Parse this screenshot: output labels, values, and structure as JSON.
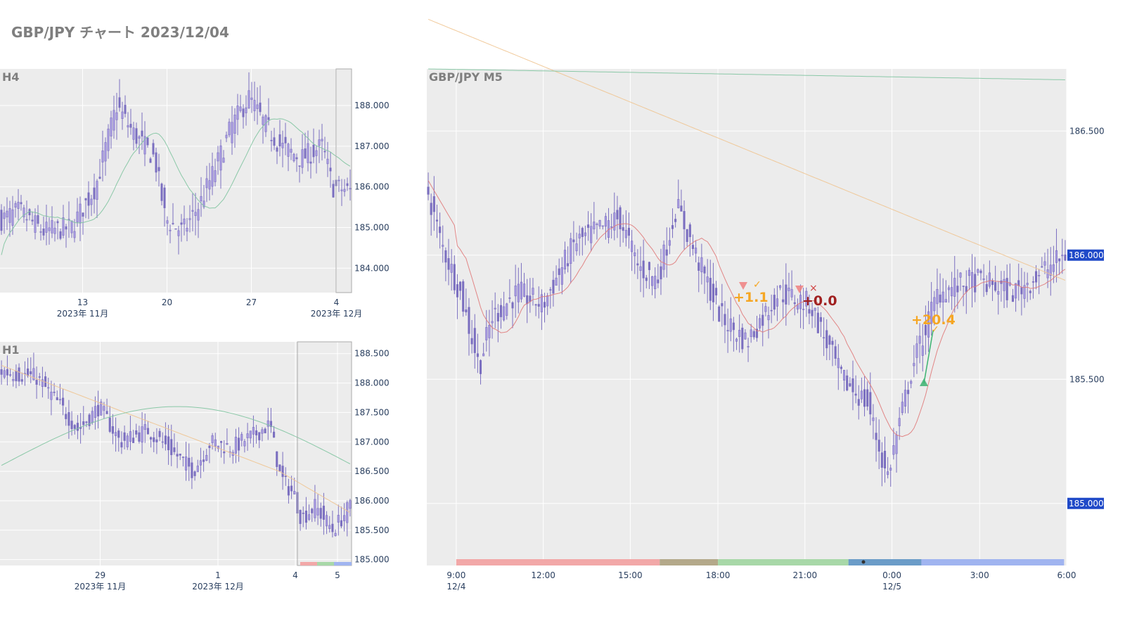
{
  "page": {
    "title": "GBP/JPY チャート 2023/12/04"
  },
  "colors": {
    "plot_bg": "#ececec",
    "grid": "#ffffff",
    "candle": "#7b6fc0",
    "ma_short": "#e07a7a",
    "ma_mid": "#f0c490",
    "ma_long": "#7fc4a0",
    "price_box": "#1f49c8",
    "label_gray": "#7f7f7f",
    "profit": "#f5a623",
    "loss": "#a02020"
  },
  "chart_data": [
    {
      "id": "h4",
      "type": "candlestick",
      "title": "H4",
      "x_ticks": [
        "13",
        "20",
        "27",
        "4"
      ],
      "x_sublabels": [
        "2023年 11月",
        "2023年 12月"
      ],
      "y_ticks": [
        "188.000",
        "187.000",
        "186.000",
        "185.000",
        "184.000"
      ],
      "ylim": [
        183.4,
        188.9
      ],
      "highlight": "current session window",
      "ma_series": [
        "ma_long"
      ]
    },
    {
      "id": "h1",
      "type": "candlestick",
      "title": "H1",
      "x_ticks": [
        "29",
        "1",
        "4",
        "5"
      ],
      "x_sublabels": [
        "2023年 11月",
        "2023年 12月"
      ],
      "y_ticks": [
        "188.500",
        "188.000",
        "187.500",
        "187.000",
        "186.500",
        "186.000",
        "185.500",
        "185.000"
      ],
      "ylim": [
        184.9,
        188.7
      ],
      "ma_series": [
        "ma_mid",
        "ma_long"
      ]
    },
    {
      "id": "m5",
      "type": "candlestick",
      "title": "GBP/JPY M5",
      "x_ticks": [
        "9:00",
        "12:00",
        "15:00",
        "18:00",
        "21:00",
        "0:00",
        "3:00",
        "6:00"
      ],
      "x_sublabels": [
        "12/4",
        "12/5"
      ],
      "y_ticks": [
        "186.500",
        "185.500"
      ],
      "price_boxes": [
        "186.000",
        "185.000"
      ],
      "ylim": [
        184.75,
        186.75
      ],
      "ma_series": [
        "ma_short",
        "ma_mid",
        "ma_long"
      ],
      "trades": [
        {
          "label": "+1.1",
          "result": "profit",
          "exit": "✓"
        },
        {
          "label": "+0.0",
          "result": "loss",
          "exit": "×"
        },
        {
          "label": "+20.4",
          "result": "profit",
          "exit": "✓"
        }
      ],
      "sessions": [
        {
          "name": "tokyo",
          "color": "#f2a8a8"
        },
        {
          "name": "overlap",
          "color": "#b4a98a"
        },
        {
          "name": "london",
          "color": "#a8d8a8"
        },
        {
          "name": "ny-overlap",
          "color": "#6b9cc8"
        },
        {
          "name": "newyork",
          "color": "#a0b4f0"
        }
      ]
    }
  ]
}
